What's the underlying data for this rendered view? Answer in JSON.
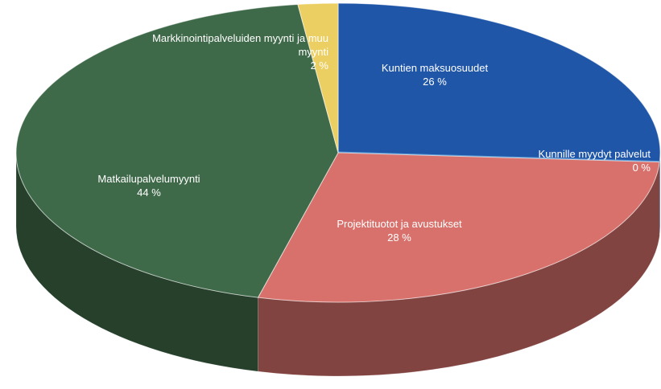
{
  "chart_data": {
    "type": "pie",
    "categories": [
      "Kuntien maksuosuudet",
      "Kunnille myydyt palvelut",
      "Projektituotot ja avustukset",
      "Matkailupalvelumyynti",
      "Markkinointipalveluiden myynti ja muu myynti"
    ],
    "values": [
      26,
      0,
      28,
      44,
      2
    ],
    "value_labels": [
      "26 %",
      "0 %",
      "28 %",
      "44 %",
      "2 %"
    ],
    "colors": [
      "#1f56a8",
      "#5b9bd5",
      "#d8716c",
      "#3f6a4a",
      "#eccf62"
    ]
  }
}
